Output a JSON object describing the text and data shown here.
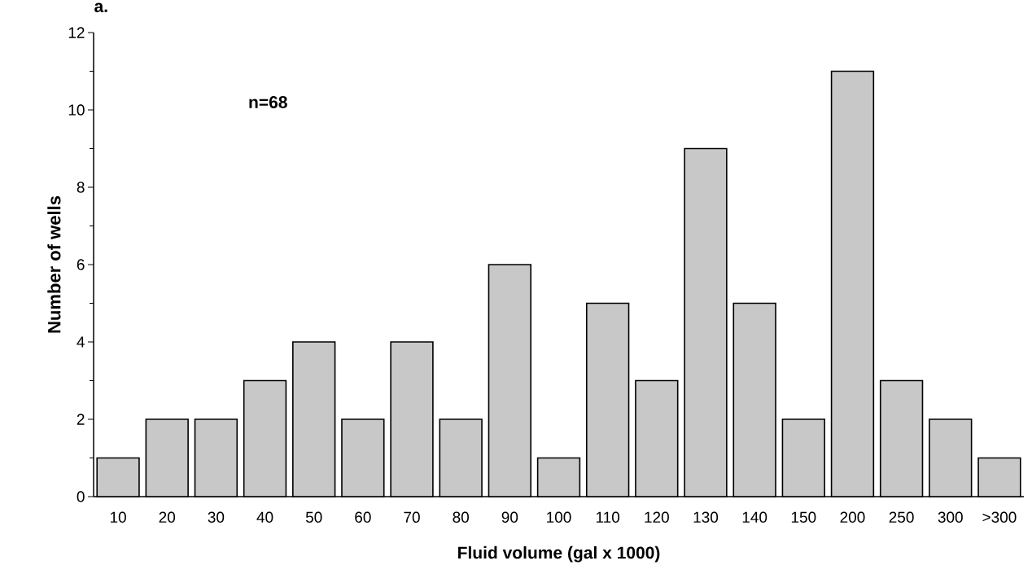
{
  "chart_data": {
    "type": "bar",
    "title": "a.",
    "xlabel": "Fluid volume (gal x 1000)",
    "ylabel": "Number  of  wells",
    "categories": [
      "10",
      "20",
      "30",
      "40",
      "50",
      "60",
      "70",
      "80",
      "90",
      "100",
      "110",
      "120",
      "130",
      "140",
      "150",
      "200",
      "250",
      "300",
      ">300"
    ],
    "values": [
      1,
      2,
      2,
      3,
      4,
      2,
      4,
      2,
      6,
      1,
      5,
      3,
      9,
      5,
      2,
      11,
      3,
      2,
      1
    ],
    "color": "#c8c8c8",
    "ylim": [
      0,
      12
    ],
    "yticks": [
      0,
      2,
      4,
      6,
      8,
      10,
      12
    ],
    "annotations": [
      "n=68"
    ]
  }
}
